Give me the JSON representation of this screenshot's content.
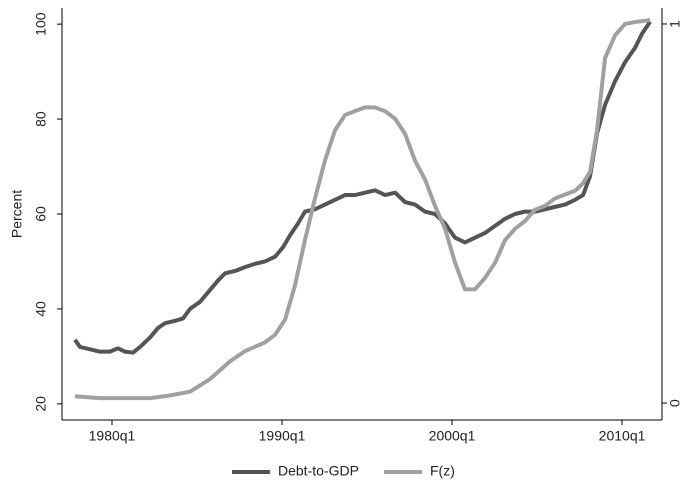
{
  "chart_data": {
    "type": "line",
    "y_label": "Percent",
    "xlim": [
      1977.06,
      2012.35
    ],
    "xticks": [
      {
        "value": 1980,
        "label": "1980q1"
      },
      {
        "value": 1990,
        "label": "1990q1"
      },
      {
        "value": 2000,
        "label": "2000q1"
      },
      {
        "value": 2010,
        "label": "2010q1"
      }
    ],
    "ylim": [
      16.6,
      103.4
    ],
    "yticks": [
      20,
      40,
      60,
      80,
      100
    ],
    "y2lim": [
      -0.0447,
      1.0421
    ],
    "y2ticks": [
      0,
      1
    ],
    "legend": "bottom",
    "series": [
      {
        "name": "Debt-to-GDP",
        "color": "#555555",
        "axis": "y",
        "x": [
          1977.82,
          1978.12,
          1978.71,
          1979.29,
          1979.88,
          1980.35,
          1980.76,
          1981.24,
          1981.65,
          1982.24,
          1982.71,
          1983.12,
          1983.71,
          1984.18,
          1984.59,
          1985.18,
          1985.65,
          1986.24,
          1986.65,
          1987.24,
          1987.82,
          1988.41,
          1989.0,
          1989.59,
          1990.06,
          1990.47,
          1990.94,
          1991.35,
          1991.94,
          1992.53,
          1993.12,
          1993.71,
          1994.29,
          1994.88,
          1995.47,
          1996.06,
          1996.65,
          1997.24,
          1997.82,
          1998.41,
          1999.0,
          1999.59,
          2000.18,
          2000.76,
          2001.35,
          2001.94,
          2002.53,
          2003.12,
          2003.71,
          2004.29,
          2004.88,
          2005.47,
          2006.06,
          2006.65,
          2007.24,
          2007.71,
          2008.12,
          2008.53,
          2009.0,
          2009.59,
          2010.18,
          2010.76,
          2011.18,
          2011.65
        ],
        "values": [
          33.5,
          32,
          31.5,
          31,
          31,
          31.7,
          31,
          30.8,
          32,
          34,
          36,
          37,
          37.5,
          38,
          40,
          41.5,
          43.5,
          46,
          47.5,
          48,
          48.8,
          49.5,
          50,
          51,
          53,
          55.5,
          58,
          60.5,
          61,
          62,
          63,
          64,
          64,
          64.5,
          65,
          64,
          64.5,
          62.5,
          62,
          60.5,
          60,
          58,
          55,
          54,
          55,
          56,
          57.5,
          59,
          60,
          60.5,
          60.5,
          61,
          61.5,
          62,
          63,
          64,
          68,
          77,
          83,
          88,
          92,
          95,
          98,
          100.5
        ]
      },
      {
        "name": "F(z)",
        "color": "#a0a0a0",
        "axis": "y2",
        "x": [
          1977.82,
          1979.29,
          1982.24,
          1983.41,
          1984.59,
          1985.76,
          1986.94,
          1987.82,
          1989.0,
          1989.59,
          1990.18,
          1990.76,
          1991.35,
          1991.94,
          1992.53,
          1993.12,
          1993.71,
          1994.29,
          1994.88,
          1995.47,
          1996.06,
          1996.65,
          1997.24,
          1997.82,
          1998.41,
          1999.0,
          1999.59,
          2000.18,
          2000.76,
          2001.35,
          2001.94,
          2002.53,
          2003.12,
          2003.71,
          2004.29,
          2004.88,
          2005.47,
          2006.06,
          2006.65,
          2007.24,
          2007.71,
          2008.12,
          2008.53,
          2009.0,
          2009.59,
          2010.18,
          2010.76,
          2011.65
        ],
        "values": [
          0.018,
          0.013,
          0.013,
          0.02,
          0.03,
          0.063,
          0.11,
          0.137,
          0.16,
          0.18,
          0.22,
          0.31,
          0.43,
          0.54,
          0.64,
          0.72,
          0.76,
          0.77,
          0.78,
          0.78,
          0.77,
          0.75,
          0.71,
          0.64,
          0.59,
          0.52,
          0.46,
          0.37,
          0.3,
          0.3,
          0.33,
          0.37,
          0.43,
          0.46,
          0.48,
          0.51,
          0.52,
          0.54,
          0.55,
          0.56,
          0.58,
          0.61,
          0.72,
          0.91,
          0.97,
          1.0,
          1.005,
          1.01
        ]
      }
    ]
  }
}
